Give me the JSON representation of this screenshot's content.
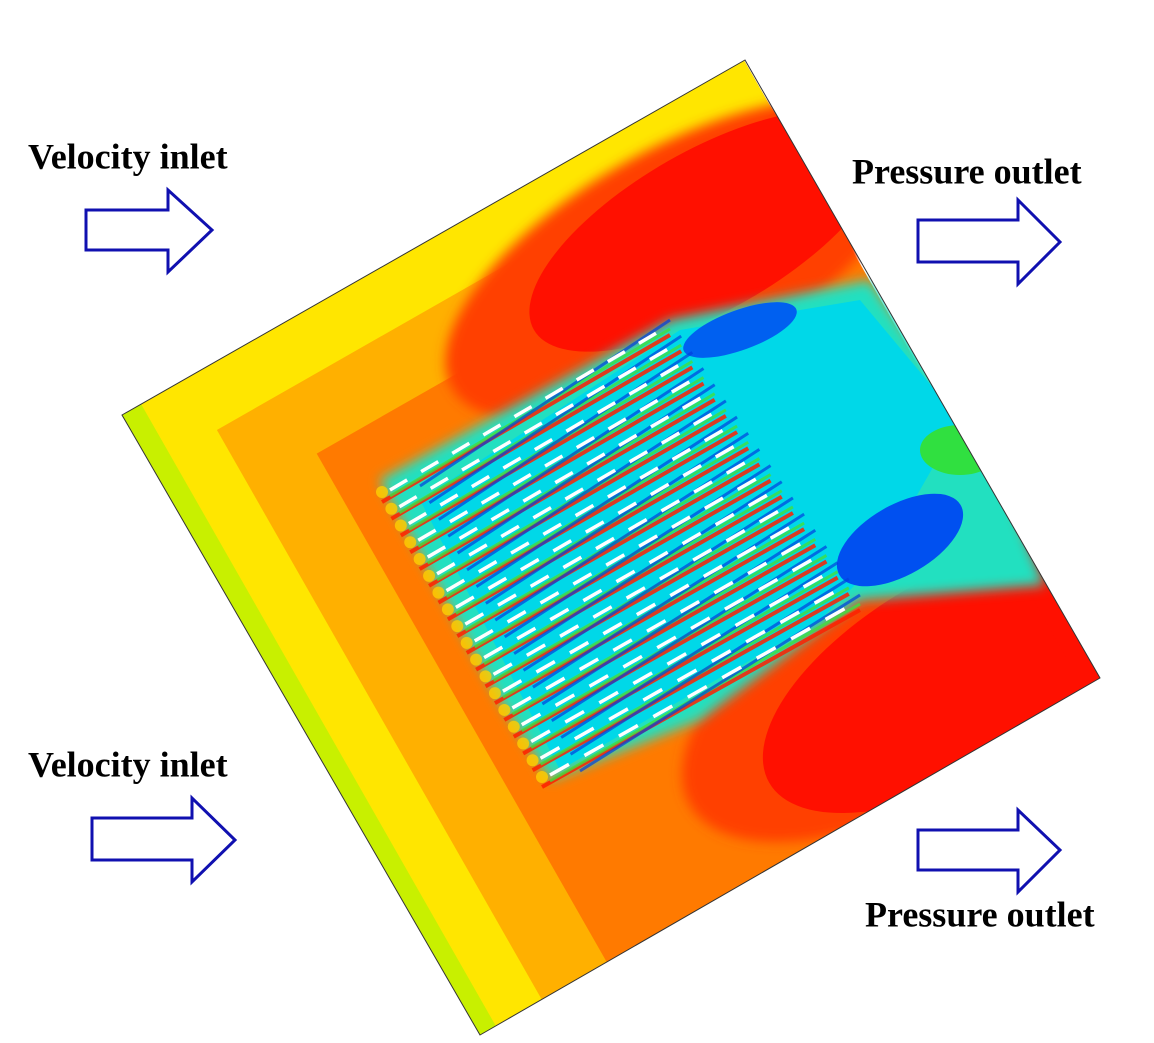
{
  "labels": [
    "Velocity inlet",
    "Pressure outlet",
    "Velocity inlet",
    "Pressure outlet"
  ]
}
